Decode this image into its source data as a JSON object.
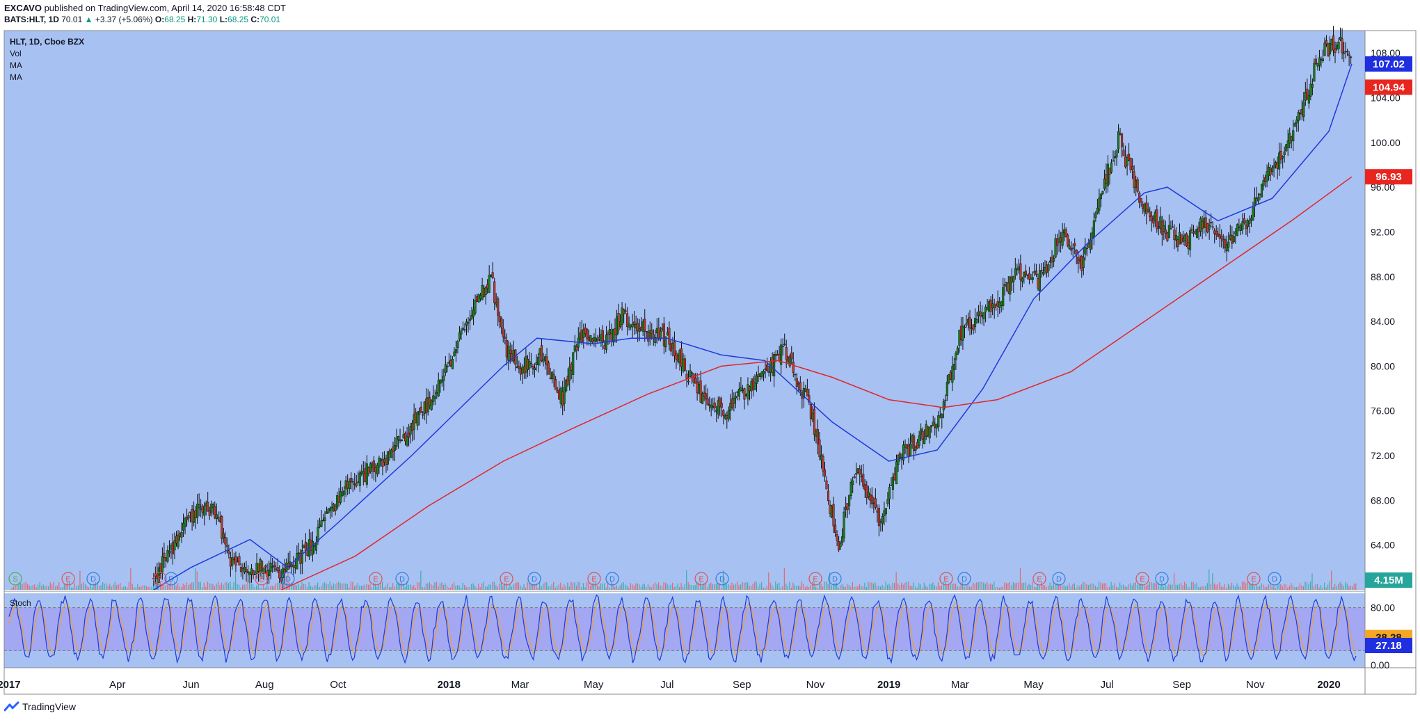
{
  "header": {
    "author": "EXCAVO",
    "published": "published on TradingView.com, April 14, 2020 16:58:48 CDT",
    "symbol": "BATS:HLT, 1D",
    "last": "70.01",
    "arrow": "▲",
    "change": "+3.37 (+5.06%)",
    "o_label": "O:",
    "o": "68.25",
    "h_label": "H:",
    "h": "71.30",
    "l_label": "L:",
    "l": "68.25",
    "c_label": "C:",
    "c": "70.01"
  },
  "legend": {
    "title": "HLT, 1D, Cboe BZX",
    "vol": "Vol",
    "ma1": "MA",
    "ma2": "MA"
  },
  "stoch": {
    "title": "Stoch"
  },
  "footer": {
    "brand": "TradingView"
  },
  "colors": {
    "background": "#a7c1f2",
    "stoch_band": "#a4a7f2",
    "candle_up": "#1b7f1b",
    "candle_down": "#c0392b",
    "ma_short": "#1e3adb",
    "ma_long": "#e0262a",
    "stoch_k": "#1e3adb",
    "stoch_d": "#f0a030",
    "vol_up": "#26a69a",
    "vol_down": "#ef5350"
  },
  "chart_data": [
    {
      "type": "candlestick",
      "title": "HLT, 1D, Cboe BZX",
      "ylim": [
        60,
        110
      ],
      "y_ticks": [
        "64.00",
        "68.00",
        "72.00",
        "76.00",
        "80.00",
        "84.00",
        "88.00",
        "92.00",
        "96.00",
        "100.00",
        "104.00",
        "108.00"
      ],
      "x_tick_labels": [
        "2017",
        "Apr",
        "Jun",
        "Aug",
        "Oct",
        "2018",
        "Mar",
        "May",
        "Jul",
        "Sep",
        "Nov",
        "2019",
        "Mar",
        "May",
        "Jul",
        "Sep",
        "Nov",
        "2020"
      ],
      "price_path": {
        "dates": [
          "2017-05-01",
          "2017-05-20",
          "2017-06-05",
          "2017-06-20",
          "2017-07-05",
          "2017-07-25",
          "2017-08-15",
          "2017-09-01",
          "2017-09-20",
          "2017-10-10",
          "2017-11-01",
          "2017-11-20",
          "2017-12-10",
          "2018-01-01",
          "2018-01-20",
          "2018-02-05",
          "2018-02-15",
          "2018-03-01",
          "2018-03-20",
          "2018-04-05",
          "2018-04-20",
          "2018-05-10",
          "2018-05-25",
          "2018-06-15",
          "2018-07-01",
          "2018-07-15",
          "2018-07-31",
          "2018-08-20",
          "2018-09-05",
          "2018-09-25",
          "2018-10-05",
          "2018-10-25",
          "2018-11-01",
          "2018-11-20",
          "2018-12-05",
          "2018-12-24",
          "2019-01-10",
          "2019-01-31",
          "2019-02-14",
          "2019-03-01",
          "2019-03-25",
          "2019-04-20",
          "2019-05-05",
          "2019-05-25",
          "2019-06-10",
          "2019-07-01",
          "2019-07-10",
          "2019-07-31",
          "2019-08-20",
          "2019-09-05",
          "2019-09-20",
          "2019-10-05",
          "2019-10-25",
          "2019-11-10",
          "2019-11-25",
          "2019-12-10",
          "2019-12-24",
          "2020-01-10",
          "2020-01-20"
        ],
        "close": [
          61.0,
          64.5,
          67.0,
          67.5,
          62.5,
          62.0,
          61.5,
          63.0,
          66.0,
          69.5,
          71.0,
          73.0,
          76.0,
          80.0,
          85.0,
          88.0,
          82.0,
          80.0,
          81.0,
          77.0,
          83.0,
          82.0,
          84.5,
          83.0,
          82.5,
          80.0,
          77.0,
          76.0,
          78.0,
          80.0,
          81.5,
          77.0,
          74.0,
          64.0,
          71.0,
          66.0,
          72.0,
          74.0,
          76.0,
          83.0,
          85.0,
          88.5,
          87.5,
          92.0,
          89.0,
          97.0,
          100.5,
          94.0,
          92.0,
          91.0,
          93.0,
          91.0,
          93.0,
          97.0,
          99.0,
          103.0,
          108.0,
          109.0,
          107.0
        ]
      },
      "moving_averages": [
        {
          "name": "MA",
          "color": "#1e3adb",
          "last_value": "107.02",
          "dates": [
            "2017-05-01",
            "2017-06-01",
            "2017-07-20",
            "2017-08-20",
            "2017-10-01",
            "2017-12-01",
            "2018-02-15",
            "2018-03-15",
            "2018-05-01",
            "2018-06-01",
            "2018-07-01",
            "2018-08-15",
            "2018-09-20",
            "2018-11-15",
            "2019-01-01",
            "2019-02-10",
            "2019-03-20",
            "2019-05-01",
            "2019-06-15",
            "2019-08-01",
            "2019-08-20",
            "2019-10-01",
            "2019-11-15",
            "2020-01-01",
            "2020-01-20"
          ],
          "values": [
            60.0,
            62.0,
            64.5,
            62.0,
            66.0,
            72.0,
            80.0,
            82.5,
            82.0,
            82.5,
            82.5,
            81.0,
            80.5,
            75.0,
            71.5,
            72.5,
            78.0,
            86.0,
            91.0,
            95.5,
            96.0,
            93.0,
            95.0,
            101.0,
            107.02
          ]
        },
        {
          "name": "MA",
          "color": "#e0262a",
          "last_value": "96.93",
          "dates": [
            "2017-08-15",
            "2017-10-15",
            "2017-12-15",
            "2018-02-15",
            "2018-04-15",
            "2018-06-15",
            "2018-08-15",
            "2018-10-01",
            "2018-11-15",
            "2019-01-01",
            "2019-02-15",
            "2019-04-01",
            "2019-06-01",
            "2019-08-01",
            "2019-10-01",
            "2019-12-01",
            "2020-01-20"
          ],
          "values": [
            60.0,
            63.0,
            67.5,
            71.5,
            74.5,
            77.5,
            80.0,
            80.5,
            79.0,
            77.0,
            76.3,
            77.0,
            79.5,
            84.0,
            88.5,
            93.0,
            96.93
          ]
        }
      ],
      "price_labels": [
        "107.02",
        "104.94",
        "96.93"
      ]
    },
    {
      "type": "bar",
      "title": "Vol",
      "last_value": "4.15M",
      "earnings_markers": [
        "E",
        "E",
        "E",
        "E",
        "E",
        "E",
        "E",
        "E",
        "E",
        "E",
        "E",
        "E"
      ],
      "dividend_markers": [
        "D",
        "D",
        "D",
        "D",
        "D",
        "D",
        "D",
        "D",
        "D",
        "D",
        "D",
        "D"
      ],
      "split_marker": "S"
    },
    {
      "type": "line",
      "title": "Stoch",
      "ylim": [
        0,
        100
      ],
      "y_ticks": [
        "0.00",
        "80.00"
      ],
      "band": [
        20,
        80
      ],
      "series": [
        {
          "name": "%K",
          "last_value": "27.18"
        },
        {
          "name": "%D",
          "last_value": "38.28"
        }
      ]
    }
  ]
}
